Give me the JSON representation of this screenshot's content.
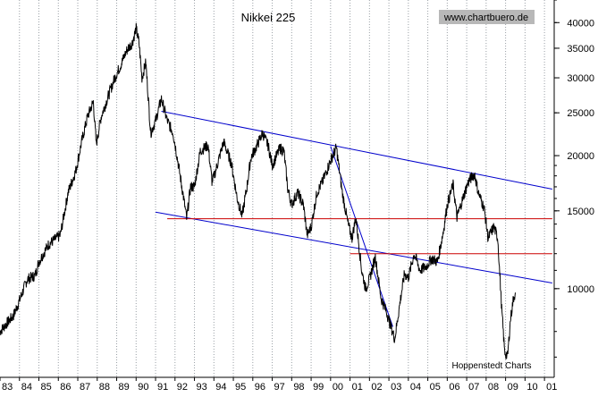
{
  "chart_data": {
    "type": "line",
    "title": "Nikkei 225",
    "watermark": "www.chartbuero.de",
    "credit": "Hoppenstedt Charts",
    "scale": "log",
    "x_axis": {
      "ticks": [
        "83",
        "84",
        "85",
        "86",
        "87",
        "88",
        "89",
        "90",
        "91",
        "92",
        "93",
        "94",
        "95",
        "96",
        "97",
        "98",
        "99",
        "00",
        "01",
        "02",
        "03",
        "04",
        "05",
        "06",
        "07",
        "08",
        "09",
        "10",
        "01"
      ],
      "range": [
        1983.0,
        2011.5
      ]
    },
    "y_axis": {
      "ticks": [
        10000,
        15000,
        20000,
        25000,
        30000,
        35000,
        40000
      ],
      "tick_labels": [
        "10000",
        "15000",
        "20000",
        "25000",
        "30000",
        "35000",
        "40000"
      ],
      "range": [
        6300,
        45000
      ],
      "position": "right"
    },
    "series": [
      {
        "name": "Nikkei 225",
        "color": "#000000",
        "points": [
          [
            1983.0,
            8000
          ],
          [
            1983.3,
            8300
          ],
          [
            1983.7,
            8700
          ],
          [
            1984.0,
            9400
          ],
          [
            1984.4,
            10500
          ],
          [
            1984.8,
            10700
          ],
          [
            1985.0,
            11500
          ],
          [
            1985.5,
            12600
          ],
          [
            1985.9,
            13000
          ],
          [
            1986.1,
            13200
          ],
          [
            1986.5,
            16500
          ],
          [
            1986.9,
            18500
          ],
          [
            1987.2,
            21500
          ],
          [
            1987.5,
            24500
          ],
          [
            1987.8,
            26500
          ],
          [
            1987.95,
            21200
          ],
          [
            1988.2,
            24500
          ],
          [
            1988.6,
            27500
          ],
          [
            1988.9,
            30000
          ],
          [
            1989.2,
            32000
          ],
          [
            1989.5,
            34500
          ],
          [
            1989.8,
            36000
          ],
          [
            1990.0,
            38800
          ],
          [
            1990.15,
            36000
          ],
          [
            1990.3,
            30000
          ],
          [
            1990.5,
            32500
          ],
          [
            1990.75,
            22500
          ],
          [
            1991.0,
            24000
          ],
          [
            1991.3,
            26900
          ],
          [
            1991.6,
            24000
          ],
          [
            1991.9,
            22500
          ],
          [
            1992.1,
            20000
          ],
          [
            1992.4,
            16500
          ],
          [
            1992.6,
            14400
          ],
          [
            1992.8,
            17000
          ],
          [
            1993.0,
            17000
          ],
          [
            1993.3,
            20500
          ],
          [
            1993.7,
            21100
          ],
          [
            1993.9,
            17500
          ],
          [
            1994.0,
            17900
          ],
          [
            1994.5,
            21500
          ],
          [
            1994.9,
            19200
          ],
          [
            1995.2,
            16000
          ],
          [
            1995.45,
            14600
          ],
          [
            1995.7,
            17000
          ],
          [
            1995.9,
            19800
          ],
          [
            1996.2,
            21000
          ],
          [
            1996.5,
            22500
          ],
          [
            1996.8,
            21000
          ],
          [
            1997.0,
            19000
          ],
          [
            1997.4,
            20800
          ],
          [
            1997.6,
            20500
          ],
          [
            1997.8,
            16800
          ],
          [
            1998.0,
            15500
          ],
          [
            1998.3,
            16500
          ],
          [
            1998.6,
            15500
          ],
          [
            1998.8,
            13200
          ],
          [
            1999.0,
            13800
          ],
          [
            1999.3,
            16500
          ],
          [
            1999.6,
            17500
          ],
          [
            1999.8,
            18500
          ],
          [
            2000.0,
            19500
          ],
          [
            2000.3,
            20833
          ],
          [
            2000.6,
            16500
          ],
          [
            2000.9,
            14000
          ],
          [
            2001.1,
            13000
          ],
          [
            2001.3,
            14500
          ],
          [
            2001.6,
            11000
          ],
          [
            2001.8,
            10000
          ],
          [
            2002.0,
            10500
          ],
          [
            2002.3,
            11800
          ],
          [
            2002.6,
            9500
          ],
          [
            2002.9,
            8800
          ],
          [
            2003.1,
            8200
          ],
          [
            2003.3,
            7700
          ],
          [
            2003.6,
            9500
          ],
          [
            2003.8,
            10800
          ],
          [
            2004.0,
            10600
          ],
          [
            2004.3,
            12000
          ],
          [
            2004.6,
            11000
          ],
          [
            2004.9,
            11200
          ],
          [
            2005.2,
            11700
          ],
          [
            2005.5,
            11500
          ],
          [
            2005.8,
            13500
          ],
          [
            2006.0,
            15500
          ],
          [
            2006.3,
            17200
          ],
          [
            2006.5,
            14500
          ],
          [
            2006.9,
            16500
          ],
          [
            2007.1,
            17500
          ],
          [
            2007.4,
            18200
          ],
          [
            2007.6,
            16500
          ],
          [
            2007.9,
            15200
          ],
          [
            2008.1,
            13000
          ],
          [
            2008.4,
            13800
          ],
          [
            2008.6,
            13000
          ],
          [
            2008.8,
            9000
          ],
          [
            2008.95,
            7200
          ],
          [
            2009.1,
            7000
          ],
          [
            2009.25,
            8500
          ],
          [
            2009.4,
            9500
          ],
          [
            2009.5,
            9800
          ]
        ]
      }
    ],
    "trendlines": [
      {
        "name": "upper-channel",
        "color": "#0000cc",
        "from": [
          1991.3,
          25200
        ],
        "to": [
          2011.4,
          16800
        ]
      },
      {
        "name": "lower-channel",
        "color": "#0000cc",
        "from": [
          1991.0,
          14900
        ],
        "to": [
          2011.4,
          10300
        ]
      },
      {
        "name": "steep-decline",
        "color": "#0000cc",
        "from": [
          2000.0,
          21000
        ],
        "to": [
          2003.2,
          8200
        ]
      },
      {
        "name": "support-15000",
        "color": "#cc0000",
        "from": [
          1991.6,
          14400
        ],
        "to": [
          2011.4,
          14400
        ]
      },
      {
        "name": "support-12000",
        "color": "#cc0000",
        "from": [
          2001.0,
          12000
        ],
        "to": [
          2011.4,
          12000
        ]
      }
    ],
    "grid": {
      "vertical": true,
      "style": "dotted",
      "color": "#9aa0a6"
    }
  }
}
